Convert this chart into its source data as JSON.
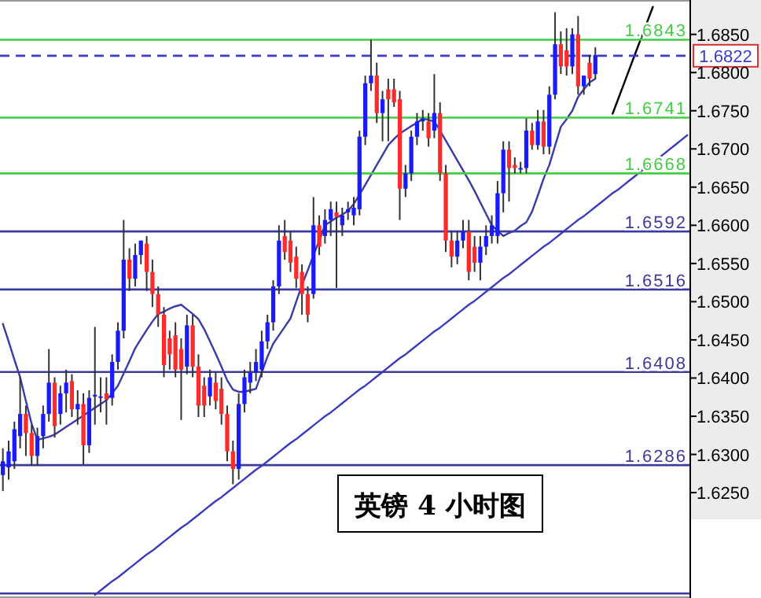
{
  "chart_data": [
    {
      "type": "candlestick",
      "categories": [
        null,
        null,
        null,
        null,
        null,
        null,
        null,
        null,
        null,
        null,
        null,
        null,
        null,
        null,
        null,
        null,
        null,
        null,
        null,
        null,
        null,
        null,
        null,
        null,
        null,
        null,
        null,
        null,
        null,
        null,
        null,
        null,
        null,
        null,
        null,
        null,
        null,
        null,
        null,
        null,
        null,
        null,
        null,
        null,
        null,
        null,
        null,
        null,
        null,
        null,
        null,
        null,
        null,
        null,
        null,
        null,
        null,
        null,
        null,
        null,
        null,
        null,
        null,
        null,
        null,
        null,
        null,
        null,
        null,
        null,
        null,
        null,
        null,
        null,
        null,
        null,
        null,
        null,
        null,
        null,
        null,
        null,
        null,
        null,
        null,
        null,
        null,
        null,
        null,
        null,
        null,
        null,
        null,
        null,
        null,
        null,
        null,
        null,
        null,
        null,
        null,
        null,
        null,
        null,
        null,
        null,
        null,
        null,
        null,
        null,
        null,
        null,
        null,
        null,
        null,
        null,
        null,
        null,
        null,
        null
      ],
      "ohlc": [
        [
          1.6273,
          1.6308,
          1.6252,
          1.6291
        ],
        [
          1.6283,
          1.6318,
          1.6267,
          1.6304
        ],
        [
          1.6291,
          1.6343,
          1.6281,
          1.6333
        ],
        [
          1.6324,
          1.6401,
          1.6308,
          1.6353
        ],
        [
          1.6353,
          1.6364,
          1.6298,
          1.6328
        ],
        [
          1.6328,
          1.6339,
          1.6285,
          1.6298
        ],
        [
          1.6298,
          1.6335,
          1.6285,
          1.6324
        ],
        [
          1.6324,
          1.6364,
          1.6308,
          1.6353
        ],
        [
          1.6353,
          1.6438,
          1.6343,
          1.6394
        ],
        [
          1.6394,
          1.6401,
          1.6322,
          1.6337
        ],
        [
          1.6353,
          1.639,
          1.6339,
          1.638
        ],
        [
          1.638,
          1.6411,
          1.6355,
          1.6394
        ],
        [
          1.6396,
          1.6405,
          1.6349,
          1.6359
        ],
        [
          1.6359,
          1.6384,
          1.6339,
          1.6366
        ],
        [
          1.6366,
          1.638,
          1.6287,
          1.6312
        ],
        [
          1.6312,
          1.6384,
          1.6302,
          1.6374
        ],
        [
          1.6376,
          1.6467,
          1.6339,
          1.6378
        ],
        [
          1.6376,
          1.6401,
          1.6355,
          1.6376
        ],
        [
          1.638,
          1.6401,
          1.6339,
          1.6372
        ],
        [
          1.6374,
          1.6431,
          1.6364,
          1.6421
        ],
        [
          1.6421,
          1.6473,
          1.6411,
          1.6462
        ],
        [
          1.6462,
          1.6607,
          1.6452,
          1.6555
        ],
        [
          1.6555,
          1.657,
          1.6514,
          1.653
        ],
        [
          1.653,
          1.6576,
          1.652,
          1.6561
        ],
        [
          1.6561,
          1.658,
          1.6549,
          1.658
        ],
        [
          1.6576,
          1.6586,
          1.6514,
          1.6539
        ],
        [
          1.6539,
          1.6555,
          1.6493,
          1.651
        ],
        [
          1.651,
          1.652,
          1.6467,
          1.6483
        ],
        [
          1.6483,
          1.6493,
          1.6401,
          1.6417
        ],
        [
          1.6452,
          1.6462,
          1.6411,
          1.6431
        ],
        [
          1.6456,
          1.6473,
          1.6401,
          1.6411
        ],
        [
          1.6438,
          1.6452,
          1.6345,
          1.6411
        ],
        [
          1.6415,
          1.6483,
          1.6405,
          1.6469
        ],
        [
          1.6469,
          1.6483,
          1.6401,
          1.6415
        ],
        [
          1.6415,
          1.6431,
          1.6349,
          1.6364
        ],
        [
          1.639,
          1.6401,
          1.6349,
          1.6364
        ],
        [
          1.6376,
          1.6411,
          1.6364,
          1.6401
        ],
        [
          1.6394,
          1.6407,
          1.6359,
          1.637
        ],
        [
          1.6386,
          1.6401,
          1.6339,
          1.6353
        ],
        [
          1.6353,
          1.6364,
          1.6291,
          1.6304
        ],
        [
          1.6304,
          1.6318,
          1.6261,
          1.6281
        ],
        [
          1.6281,
          1.638,
          1.6267,
          1.6366
        ],
        [
          1.6366,
          1.6411,
          1.6355,
          1.6401
        ],
        [
          1.6394,
          1.6421,
          1.638,
          1.6407
        ],
        [
          1.6407,
          1.6438,
          1.6396,
          1.6421
        ],
        [
          1.6411,
          1.6462,
          1.6401,
          1.6448
        ],
        [
          1.6448,
          1.6483,
          1.6438,
          1.6473
        ],
        [
          1.6473,
          1.6528,
          1.6462,
          1.652
        ],
        [
          1.652,
          1.66,
          1.651,
          1.658
        ],
        [
          1.6586,
          1.6607,
          1.6555,
          1.6565
        ],
        [
          1.658,
          1.6592,
          1.6539,
          1.6551
        ],
        [
          1.6559,
          1.6572,
          1.6518,
          1.653
        ],
        [
          1.6539,
          1.6549,
          1.6483,
          1.651
        ],
        [
          1.651,
          1.652,
          1.6473,
          1.6483
        ],
        [
          1.651,
          1.6637,
          1.6504,
          1.66
        ],
        [
          1.66,
          1.6613,
          1.6561,
          1.6572
        ],
        [
          1.6586,
          1.6621,
          1.6576,
          1.6607
        ],
        [
          1.6607,
          1.6631,
          1.6586,
          1.6621
        ],
        [
          1.6617,
          1.6631,
          1.6518,
          1.6611
        ],
        [
          1.66,
          1.6623,
          1.6586,
          1.6613
        ],
        [
          1.6617,
          1.6631,
          1.6607,
          1.6621
        ],
        [
          1.6613,
          1.6637,
          1.66,
          1.6623
        ],
        [
          1.6621,
          1.6724,
          1.6613,
          1.6716
        ],
        [
          1.6716,
          1.6796,
          1.6705,
          1.6786
        ],
        [
          1.6786,
          1.6843,
          1.6776,
          1.6796
        ],
        [
          1.6796,
          1.6813,
          1.6734,
          1.6747
        ],
        [
          1.6747,
          1.6776,
          1.671,
          1.6765
        ],
        [
          1.6778,
          1.6792,
          1.671,
          1.6765
        ],
        [
          1.6778,
          1.6792,
          1.6755,
          1.6761
        ],
        [
          1.6765,
          1.6776,
          1.6607,
          1.6648
        ],
        [
          1.6648,
          1.6679,
          1.6637,
          1.6668
        ],
        [
          1.6668,
          1.6724,
          1.6658,
          1.6716
        ],
        [
          1.6716,
          1.6747,
          1.6705,
          1.6736
        ],
        [
          1.6736,
          1.6751,
          1.6724,
          1.674
        ],
        [
          1.6736,
          1.6747,
          1.6703,
          1.6714
        ],
        [
          1.6724,
          1.6798,
          1.6714,
          1.6747
        ],
        [
          1.6747,
          1.6761,
          1.6658,
          1.6668
        ],
        [
          1.6668,
          1.6679,
          1.6565,
          1.658
        ],
        [
          1.658,
          1.6592,
          1.6545,
          1.6559
        ],
        [
          1.6559,
          1.6592,
          1.6549,
          1.658
        ],
        [
          1.658,
          1.6607,
          1.657,
          1.6592
        ],
        [
          1.6592,
          1.6607,
          1.6528,
          1.6539
        ],
        [
          1.6572,
          1.6586,
          1.6539,
          1.6551
        ],
        [
          1.6551,
          1.6586,
          1.6528,
          1.6572
        ],
        [
          1.6572,
          1.66,
          1.6561,
          1.6586
        ],
        [
          1.6586,
          1.6613,
          1.6576,
          1.66
        ],
        [
          1.6586,
          1.6658,
          1.6576,
          1.6642
        ],
        [
          1.6642,
          1.671,
          1.6617,
          1.6699
        ],
        [
          1.6699,
          1.671,
          1.6631,
          1.6675
        ],
        [
          1.6679,
          1.6689,
          1.6668,
          1.6675
        ],
        [
          1.6675,
          1.6683,
          1.6668,
          1.6675
        ],
        [
          1.6675,
          1.674,
          1.6668,
          1.6724
        ],
        [
          1.6724,
          1.6734,
          1.6699,
          1.6705
        ],
        [
          1.6705,
          1.6751,
          1.6699,
          1.6736
        ],
        [
          1.6736,
          1.6751,
          1.6693,
          1.6703
        ],
        [
          1.6703,
          1.6782,
          1.6693,
          1.6771
        ],
        [
          1.6771,
          1.6879,
          1.6765,
          1.6837
        ],
        [
          1.6837,
          1.6854,
          1.6798,
          1.6808
        ],
        [
          1.6829,
          1.6858,
          1.6796,
          1.6808
        ],
        [
          1.6808,
          1.6858,
          1.6798,
          1.685
        ],
        [
          1.685,
          1.6874,
          1.6771,
          1.6782
        ],
        [
          1.6782,
          1.6796,
          1.6771,
          1.6796
        ],
        [
          1.6813,
          1.6823,
          1.6782,
          1.6792
        ],
        [
          1.6798,
          1.6833,
          1.6792,
          1.6823
        ],
        null,
        null,
        null,
        null,
        null,
        null,
        null,
        null,
        null,
        null,
        null,
        null,
        null,
        null,
        null,
        null
      ],
      "colors": [
        "#1a1aff",
        "#1a1aff",
        "#1a1aff",
        "#1a1aff",
        "#ff2a2a",
        "#ff2a2a",
        "#1a1aff",
        "#1a1aff",
        "#1a1aff",
        "#ff2a2a",
        "#1a1aff",
        "#1a1aff",
        "#ff2a2a",
        "#1a1aff",
        "#ff2a2a",
        "#1a1aff",
        "#1a1aff",
        "#1a1aff",
        "#ff2a2a",
        "#1a1aff",
        "#1a1aff",
        "#1a1aff",
        "#ff2a2a",
        "#1a1aff",
        "#1a1aff",
        "#ff2a2a",
        "#ff2a2a",
        "#ff2a2a",
        "#ff2a2a",
        "#ff2a2a",
        "#ff2a2a",
        "#ff2a2a",
        "#1a1aff",
        "#ff2a2a",
        "#ff2a2a",
        "#ff2a2a",
        "#1a1aff",
        "#ff2a2a",
        "#ff2a2a",
        "#ff2a2a",
        "#ff2a2a",
        "#1a1aff",
        "#1a1aff",
        "#1a1aff",
        "#1a1aff",
        "#1a1aff",
        "#1a1aff",
        "#1a1aff",
        "#1a1aff",
        "#ff2a2a",
        "#ff2a2a",
        "#ff2a2a",
        "#ff2a2a",
        "#ff2a2a",
        "#1a1aff",
        "#ff2a2a",
        "#1a1aff",
        "#1a1aff",
        "#ff2a2a",
        "#1a1aff",
        "#1a1aff",
        "#1a1aff",
        "#1a1aff",
        "#1a1aff",
        "#1a1aff",
        "#ff2a2a",
        "#1a1aff",
        "#ff2a2a",
        "#ff2a2a",
        "#ff2a2a",
        "#1a1aff",
        "#1a1aff",
        "#1a1aff",
        "#1a1aff",
        "#ff2a2a",
        "#1a1aff",
        "#ff2a2a",
        "#ff2a2a",
        "#ff2a2a",
        "#1a1aff",
        "#1a1aff",
        "#ff2a2a",
        "#ff2a2a",
        "#1a1aff",
        "#1a1aff",
        "#1a1aff",
        "#1a1aff",
        "#1a1aff",
        "#ff2a2a",
        "#ff2a2a",
        "#1a1aff",
        "#1a1aff",
        "#ff2a2a",
        "#1a1aff",
        "#ff2a2a",
        "#1a1aff",
        "#1a1aff",
        "#ff2a2a",
        "#ff2a2a",
        "#1a1aff",
        "#ff2a2a",
        "#1a1aff",
        "#ff2a2a",
        "#1a1aff",
        null,
        null,
        null,
        null,
        null,
        null,
        null,
        null,
        null,
        null,
        null,
        null,
        null,
        null,
        null,
        null
      ],
      "ylim": [
        1.6112,
        1.6895
      ],
      "yticks": [
        {
          "value": 1.625,
          "label": "1.6250"
        },
        {
          "value": 1.63,
          "label": "1.6300"
        },
        {
          "value": 1.635,
          "label": "1.6350"
        },
        {
          "value": 1.64,
          "label": "1.6400"
        },
        {
          "value": 1.645,
          "label": "1.6450"
        },
        {
          "value": 1.65,
          "label": "1.6500"
        },
        {
          "value": 1.655,
          "label": "1.6550"
        },
        {
          "value": 1.66,
          "label": "1.6600"
        },
        {
          "value": 1.665,
          "label": "1.6650"
        },
        {
          "value": 1.67,
          "label": "1.6700"
        },
        {
          "value": 1.675,
          "label": "1.6750"
        },
        {
          "value": 1.68,
          "label": "1.6800"
        },
        {
          "value": 1.685,
          "label": "1.6850"
        }
      ],
      "tick_labels": "y",
      "ref_lines": [
        {
          "axis": "y",
          "value": 1.6843,
          "label": "1.6843",
          "color": "#44cc44"
        },
        {
          "axis": "y",
          "value": 1.6822,
          "label": "1.6822",
          "color": "#3a3acc",
          "line_style": "dashed"
        },
        {
          "axis": "y",
          "value": 1.6741,
          "label": "1.6741",
          "color": "#44cc44"
        },
        {
          "axis": "y",
          "value": 1.6668,
          "label": "1.6668",
          "color": "#44cc44"
        },
        {
          "axis": "y",
          "value": 1.6592,
          "label": "1.6592",
          "color": "#3a3aa0"
        },
        {
          "axis": "y",
          "value": 1.6516,
          "label": "1.6516",
          "color": "#3a3aa0"
        },
        {
          "axis": "y",
          "value": 1.6408,
          "label": "1.6408",
          "color": "#3a3aa0"
        },
        {
          "axis": "y",
          "value": 1.6286,
          "label": "1.6286",
          "color": "#3a3aa0"
        },
        {
          "axis": "y",
          "value": 1.6118,
          "color": "#3a3aa0"
        }
      ],
      "annotations": [
        "英镑 4 小时图"
      ]
    },
    {
      "type": "line",
      "tick_labels": false,
      "categories": [
        null,
        null,
        null,
        null,
        null,
        null,
        null,
        null,
        null,
        null,
        null,
        null,
        null,
        null,
        null,
        null,
        null,
        null,
        null,
        null,
        null,
        null,
        null,
        null,
        null,
        null,
        null,
        null,
        null,
        null,
        null,
        null,
        null,
        null,
        null,
        null,
        null,
        null,
        null,
        null,
        null,
        null,
        null,
        null,
        null,
        null,
        null,
        null,
        null,
        null,
        null,
        null,
        null,
        null,
        null,
        null,
        null,
        null,
        null,
        null,
        null,
        null,
        null,
        null,
        null,
        null,
        null,
        null,
        null,
        null,
        null,
        null,
        null,
        null,
        null,
        null,
        null,
        null,
        null,
        null,
        null,
        null,
        null,
        null,
        null,
        null,
        null,
        null,
        null,
        null,
        null,
        null,
        null,
        null,
        null,
        null,
        null,
        null,
        null,
        null,
        null,
        null,
        null,
        null,
        null,
        null,
        null,
        null,
        null,
        null,
        null,
        null,
        null,
        null,
        null,
        null,
        null,
        null,
        null,
        null
      ],
      "series": [
        {
          "color": "#3a3aa8",
          "values": [
            1.6471,
            1.6448,
            1.6424,
            1.6401,
            1.637,
            1.634,
            1.6319,
            1.6321,
            1.6323,
            1.6326,
            1.6331,
            1.6336,
            1.6341,
            1.6346,
            1.6351,
            1.6356,
            1.6361,
            1.6366,
            1.6371,
            1.638,
            1.639,
            1.6406,
            1.6422,
            1.6439,
            1.6451,
            1.6463,
            1.6474,
            1.6484,
            1.6487,
            1.6491,
            1.6494,
            1.6496,
            1.649,
            1.6484,
            1.6477,
            1.6464,
            1.6448,
            1.6432,
            1.6415,
            1.6397,
            1.6385,
            1.6382,
            1.6382,
            1.6384,
            1.6386,
            1.6407,
            1.6428,
            1.6445,
            1.6456,
            1.6467,
            1.6478,
            1.65,
            1.6522,
            1.6541,
            1.6561,
            1.658,
            1.66,
            1.6605,
            1.661,
            1.6614,
            1.6619,
            1.6628,
            1.664,
            1.6653,
            1.6666,
            1.6679,
            1.6692,
            1.6705,
            1.6713,
            1.672,
            1.6725,
            1.673,
            1.6734,
            1.674,
            1.6738,
            1.6736,
            1.6724,
            1.6711,
            1.6698,
            1.6685,
            1.6672,
            1.6659,
            1.6645,
            1.663,
            1.6615,
            1.66,
            1.6593,
            1.6586,
            1.659,
            1.6593,
            1.6599,
            1.6604,
            1.6618,
            1.6639,
            1.6661,
            1.6679,
            1.6704,
            1.6729,
            1.6739,
            1.675,
            1.6768,
            1.6778,
            1.6787,
            1.6792,
            null,
            null,
            null,
            null,
            null,
            null,
            null,
            null,
            null,
            null,
            null,
            null,
            null,
            null,
            null,
            null
          ]
        },
        {
          "color": "#3b3bbf",
          "values": [
            null,
            null,
            null,
            null,
            null,
            null,
            null,
            null,
            null,
            null,
            null,
            null,
            null,
            null,
            null,
            null,
            1.6116,
            1.6122,
            1.6128,
            1.6134,
            1.6139,
            1.6145,
            1.6151,
            1.6157,
            1.6163,
            1.6169,
            1.6174,
            1.618,
            1.6186,
            1.6192,
            1.6198,
            1.6204,
            1.6209,
            1.6215,
            1.6221,
            1.6227,
            1.6233,
            1.6239,
            1.6244,
            1.625,
            1.6256,
            1.6262,
            1.6268,
            1.6274,
            1.628,
            1.6285,
            1.6291,
            1.6297,
            1.6303,
            1.6309,
            1.6315,
            1.632,
            1.6326,
            1.6332,
            1.6338,
            1.6344,
            1.635,
            1.6355,
            1.6361,
            1.6367,
            1.6373,
            1.6379,
            1.6385,
            1.639,
            1.6396,
            1.6402,
            1.6408,
            1.6414,
            1.642,
            1.6426,
            1.6431,
            1.6437,
            1.6443,
            1.6449,
            1.6455,
            1.6461,
            1.6466,
            1.6472,
            1.6478,
            1.6484,
            1.649,
            1.6496,
            1.6501,
            1.6507,
            1.6513,
            1.6519,
            1.6525,
            1.6531,
            1.6536,
            1.6542,
            1.6548,
            1.6554,
            1.656,
            1.6566,
            1.6572,
            1.6577,
            1.6583,
            1.6589,
            1.6595,
            1.6601,
            1.6607,
            1.6612,
            1.6618,
            1.6624,
            1.663,
            1.6636,
            1.6642,
            1.6647,
            1.6653,
            1.6659,
            1.6665,
            1.6671,
            1.6677,
            1.6682,
            1.6688,
            1.6694,
            1.67,
            1.6706,
            1.6712,
            1.6718
          ]
        },
        {
          "color": "#000000",
          "values": [
            null,
            null,
            null,
            null,
            null,
            null,
            null,
            null,
            null,
            null,
            null,
            null,
            null,
            null,
            null,
            null,
            null,
            null,
            null,
            null,
            null,
            null,
            null,
            null,
            null,
            null,
            null,
            null,
            null,
            null,
            null,
            null,
            null,
            null,
            null,
            null,
            null,
            null,
            null,
            null,
            null,
            null,
            null,
            null,
            null,
            null,
            null,
            null,
            null,
            null,
            null,
            null,
            null,
            null,
            null,
            null,
            null,
            null,
            null,
            null,
            null,
            null,
            null,
            null,
            null,
            null,
            null,
            null,
            null,
            null,
            null,
            null,
            null,
            null,
            null,
            null,
            null,
            null,
            null,
            null,
            null,
            null,
            null,
            null,
            null,
            null,
            null,
            null,
            null,
            null,
            null,
            null,
            null,
            null,
            null,
            null,
            null,
            null,
            null,
            null,
            null,
            null,
            null,
            null,
            null,
            null,
            1.6746,
            1.6766,
            1.6786,
            1.6806,
            1.6826,
            1.6846,
            1.6866,
            1.6886,
            null,
            null,
            null,
            null,
            null,
            null
          ]
        }
      ],
      "ylim": [
        1.6112,
        1.6895
      ]
    }
  ]
}
